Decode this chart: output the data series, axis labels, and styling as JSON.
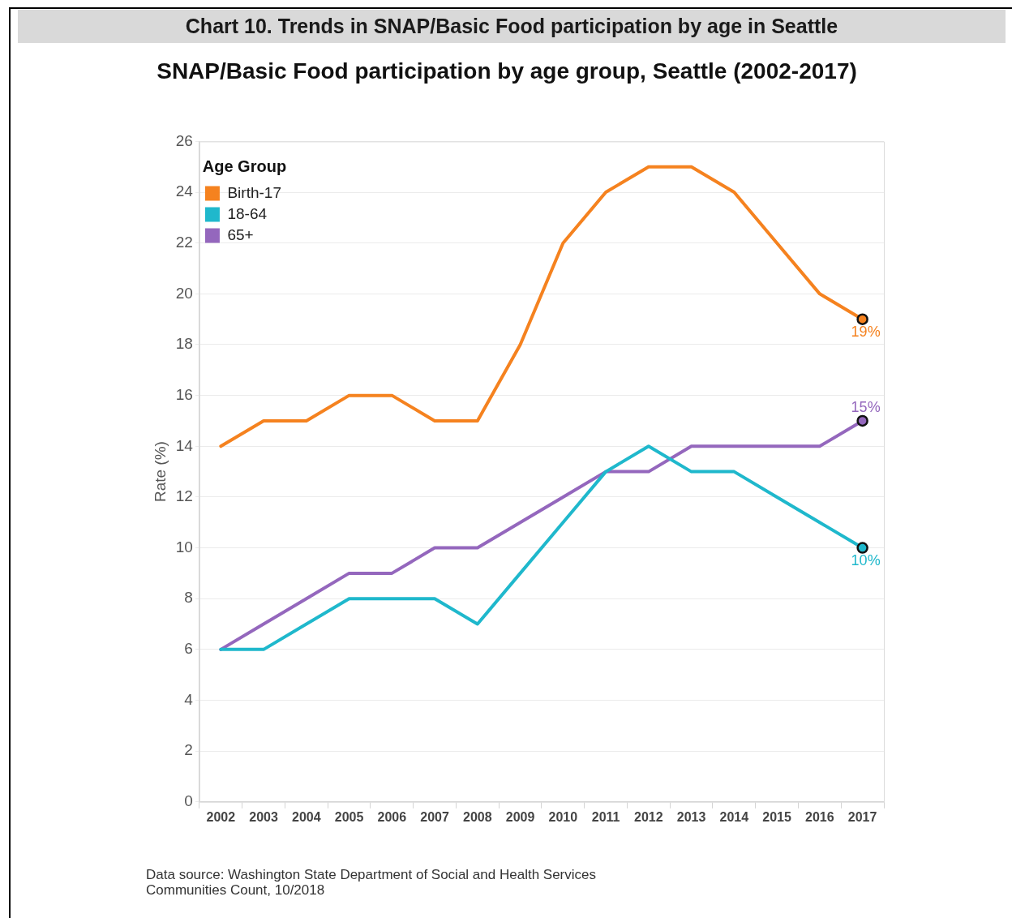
{
  "chart_data": {
    "type": "line",
    "title": "Chart 10. Trends in SNAP/Basic Food participation by age in Seattle",
    "subtitle": "SNAP/Basic Food participation by age group, Seattle (2002-2017)",
    "ylabel": "Rate (%)",
    "legend_title": "Age Group",
    "legend": "top left",
    "grid": "y",
    "categories": [
      "2002",
      "2003",
      "2004",
      "2005",
      "2006",
      "2007",
      "2008",
      "2009",
      "2010",
      "2011",
      "2012",
      "2013",
      "2014",
      "2015",
      "2016",
      "2017"
    ],
    "ylim": [
      0,
      26
    ],
    "yticks": [
      0,
      2,
      4,
      6,
      8,
      10,
      12,
      14,
      16,
      18,
      20,
      22,
      24,
      26
    ],
    "series": [
      {
        "name": "Birth-17",
        "color": "#f5821f",
        "values": [
          14,
          15,
          15,
          16,
          16,
          15,
          15,
          18,
          22,
          24,
          25,
          25,
          24,
          22,
          20,
          19
        ],
        "value_labels": [
          null,
          null,
          null,
          null,
          null,
          null,
          null,
          null,
          null,
          null,
          null,
          null,
          null,
          null,
          null,
          "19%"
        ]
      },
      {
        "name": "18-64",
        "color": "#1fb8cc",
        "values": [
          6,
          6,
          7,
          8,
          8,
          8,
          7,
          9,
          11,
          13,
          14,
          13,
          13,
          12,
          11,
          10
        ],
        "value_labels": [
          null,
          null,
          null,
          null,
          null,
          null,
          null,
          null,
          null,
          null,
          null,
          null,
          null,
          null,
          null,
          "10%"
        ]
      },
      {
        "name": "65+",
        "color": "#9467bd",
        "values": [
          6,
          7,
          8,
          9,
          9,
          10,
          10,
          11,
          12,
          13,
          13,
          14,
          14,
          14,
          14,
          15
        ],
        "value_labels": [
          null,
          null,
          null,
          null,
          null,
          null,
          null,
          null,
          null,
          null,
          null,
          null,
          null,
          null,
          null,
          "15%"
        ]
      }
    ],
    "annotations": [
      "Data source: Washington State Department of Social and Health Services",
      "Communities Count, 10/2018"
    ]
  }
}
